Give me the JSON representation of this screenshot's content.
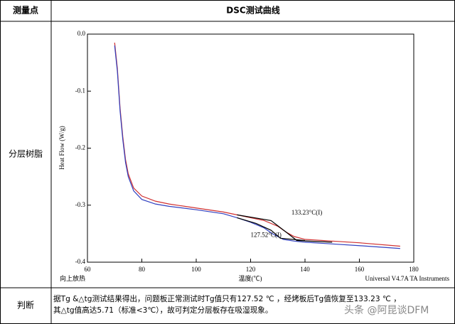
{
  "table": {
    "header": [
      "测量点",
      "DSC测试曲线"
    ],
    "rows": [
      [
        "分层树脂"
      ],
      [
        "判断",
        [
          "据Tg &△tg测试结果得出，问题板正常测试时Tg值只有127.52 ℃ ，经烤板后Tg值恢复至133.23 ℃ ，",
          "其△tg值高达5.71（标准<3℃），故可判定分层板存在吸湿现象。"
        ]
      ]
    ]
  },
  "watermark": "头条 @阿昆谈DFM",
  "chart_data": {
    "type": "line",
    "y_label": "Heat Flow (W/g)",
    "x_label": "温度(℃)",
    "note_left": "向上放热",
    "note_right": "Universal V4.7A TA Instruments",
    "annotations": [
      {
        "text": "133.23°C(I)",
        "x": 135,
        "y": -0.314,
        "color": "#8b1a1a"
      },
      {
        "text": "127.52°C(I)",
        "x": 120,
        "y": -0.353,
        "color": "#1a1a6e"
      }
    ],
    "xlim": [
      60,
      180
    ],
    "xticks": [
      60,
      80,
      100,
      120,
      140,
      160,
      180
    ],
    "ylim": [
      -0.4,
      0
    ],
    "yticks": [
      {
        "value": 0,
        "label": "0.0"
      },
      -0.1,
      -0.2,
      -0.3,
      -0.4
    ],
    "series": [
      {
        "color": "#d03030",
        "x": [
          70,
          71,
          72,
          73,
          74,
          75,
          77,
          80,
          85,
          90,
          100,
          110,
          115,
          120,
          125,
          130,
          133,
          136,
          140,
          150,
          160,
          175
        ],
        "values": [
          -0.015,
          -0.06,
          -0.13,
          -0.18,
          -0.22,
          -0.245,
          -0.27,
          -0.284,
          -0.293,
          -0.298,
          -0.305,
          -0.312,
          -0.317,
          -0.322,
          -0.327,
          -0.337,
          -0.347,
          -0.355,
          -0.36,
          -0.363,
          -0.366,
          -0.372
        ]
      },
      {
        "color": "#3040c0",
        "x": [
          70,
          71,
          72,
          73,
          74,
          75,
          77,
          80,
          85,
          90,
          100,
          110,
          115,
          120,
          125,
          128,
          132,
          136,
          140,
          150,
          160,
          175
        ],
        "values": [
          -0.02,
          -0.065,
          -0.135,
          -0.185,
          -0.225,
          -0.25,
          -0.275,
          -0.29,
          -0.298,
          -0.302,
          -0.308,
          -0.315,
          -0.322,
          -0.33,
          -0.34,
          -0.35,
          -0.36,
          -0.363,
          -0.365,
          -0.368,
          -0.371,
          -0.376
        ]
      },
      {
        "color": "#000000",
        "x": [
          115,
          127.5,
          133,
          137,
          150
        ],
        "values": [
          -0.317,
          -0.327,
          -0.347,
          -0.362,
          -0.365
        ]
      },
      {
        "color": "#000000",
        "x": [
          115,
          122,
          127.5,
          131,
          140
        ],
        "values": [
          -0.322,
          -0.332,
          -0.344,
          -0.358,
          -0.362
        ]
      }
    ]
  }
}
